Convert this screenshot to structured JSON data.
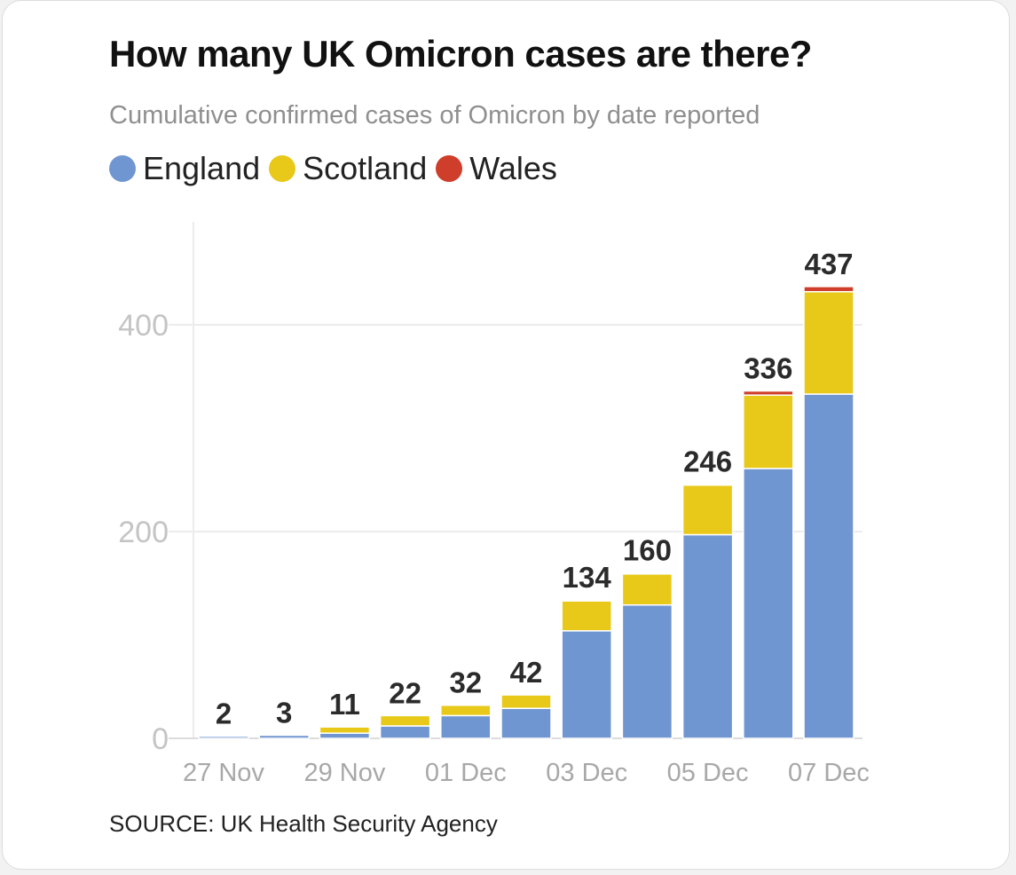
{
  "header": {
    "title": "How many UK Omicron cases are there?",
    "subtitle": "Cumulative confirmed cases of Omicron by date reported"
  },
  "legend": [
    {
      "label": "England",
      "color": "#7096d1"
    },
    {
      "label": "Scotland",
      "color": "#e8c91a"
    },
    {
      "label": "Wales",
      "color": "#cf3e2a"
    }
  ],
  "footer": {
    "source": "SOURCE: UK Health Security Agency"
  },
  "chart_data": {
    "type": "bar",
    "stacked": true,
    "title": "How many UK Omicron cases are there?",
    "subtitle": "Cumulative confirmed cases of Omicron by date reported",
    "categories": [
      "27 Nov",
      "28 Nov",
      "29 Nov",
      "30 Nov",
      "01 Dec",
      "02 Dec",
      "03 Dec",
      "04 Dec",
      "05 Dec",
      "06 Dec",
      "07 Dec"
    ],
    "tick_labels": [
      "27 Nov",
      "29 Nov",
      "01 Dec",
      "03 Dec",
      "05 Dec",
      "07 Dec"
    ],
    "series": [
      {
        "name": "England",
        "color": "#7096d1",
        "values": [
          2,
          3,
          5,
          12,
          22,
          29,
          104,
          129,
          197,
          261,
          333
        ]
      },
      {
        "name": "Scotland",
        "color": "#e8c91a",
        "values": [
          0,
          0,
          6,
          10,
          10,
          13,
          29,
          30,
          48,
          71,
          99
        ]
      },
      {
        "name": "Wales",
        "color": "#cf3e2a",
        "values": [
          0,
          0,
          0,
          0,
          0,
          0,
          1,
          1,
          1,
          4,
          5
        ]
      }
    ],
    "totals": [
      2,
      3,
      11,
      22,
      32,
      42,
      134,
      160,
      246,
      336,
      437
    ],
    "yticks": [
      0,
      200,
      400
    ],
    "ylim": [
      0,
      500
    ],
    "xlabel": "",
    "ylabel": "",
    "grid": true
  }
}
